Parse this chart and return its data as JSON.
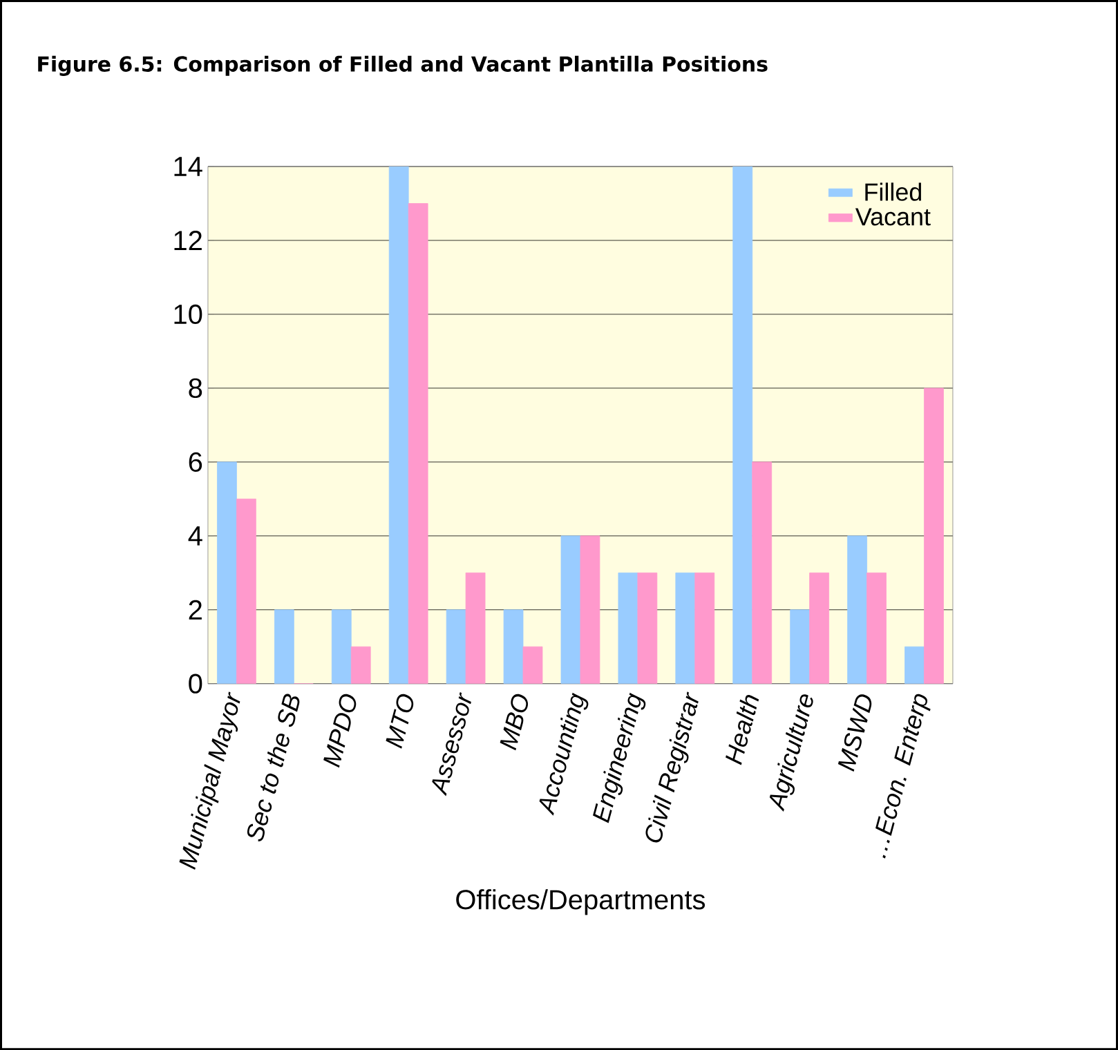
{
  "chart_data": {
    "type": "bar",
    "title": "Figure 6.5: Comparison of Filled and Vacant Plantilla Positions",
    "xlabel": "Offices/Departments",
    "categories": [
      "Municipal Mayor",
      "Sec to the SB",
      "MPDO",
      "MTO",
      "Assessor",
      "MBO",
      "Accounting",
      "Engineering",
      "Civil Registrar",
      "Health",
      "Agriculture",
      "MSWD",
      "…Econ. Enterp"
    ],
    "series": [
      {
        "name": "Filled",
        "color": "#99ccff",
        "values": [
          6,
          2,
          2,
          14,
          2,
          2,
          4,
          3,
          3,
          14,
          2,
          4,
          1
        ]
      },
      {
        "name": "Vacant",
        "color": "#ff99cc",
        "values": [
          5,
          0,
          1,
          13,
          3,
          1,
          4,
          3,
          3,
          6,
          3,
          3,
          8
        ]
      }
    ],
    "ylim": [
      0,
      14
    ],
    "yticks": [
      0,
      2,
      4,
      6,
      8,
      10,
      12,
      14
    ],
    "grid": "y",
    "legend": "top right"
  }
}
